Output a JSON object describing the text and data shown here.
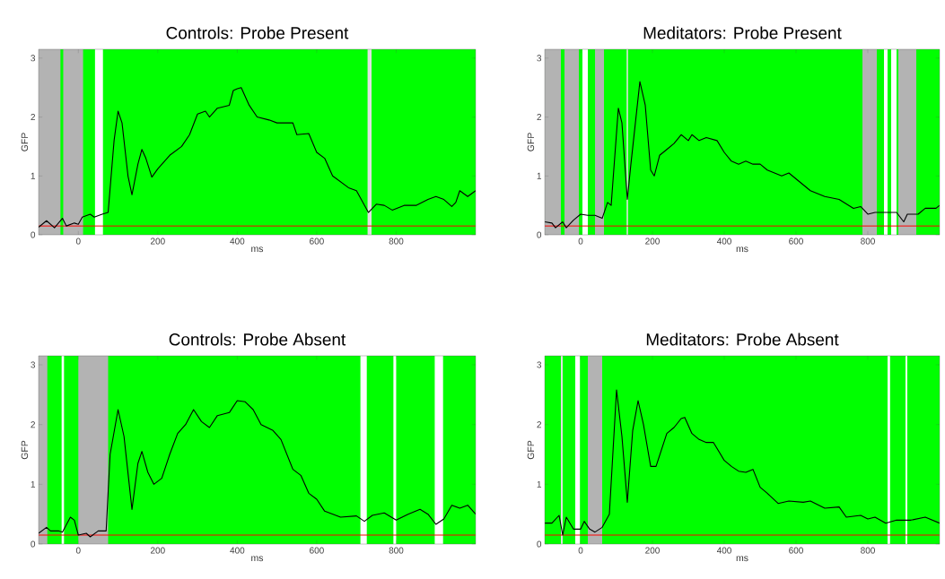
{
  "chart_data": [
    {
      "type": "line",
      "title": "Controls: Probe Present",
      "xlabel": "ms",
      "ylabel": "GFP",
      "xlim": [
        -100,
        1000
      ],
      "ylim": [
        0,
        3.15
      ],
      "xticks": [
        0,
        200,
        400,
        600,
        800
      ],
      "yticks": [
        0,
        1,
        2,
        3
      ],
      "x": [
        -100,
        -80,
        -60,
        -40,
        -30,
        -10,
        0,
        10,
        30,
        40,
        60,
        75,
        90,
        100,
        110,
        125,
        135,
        150,
        160,
        170,
        185,
        200,
        230,
        260,
        280,
        300,
        320,
        330,
        350,
        380,
        390,
        400,
        410,
        430,
        450,
        480,
        500,
        540,
        550,
        580,
        600,
        620,
        640,
        660,
        680,
        700,
        730,
        750,
        770,
        790,
        820,
        850,
        880,
        900,
        920,
        940,
        950,
        960,
        980,
        1000
      ],
      "series": [
        {
          "color": "#000000",
          "values": [
            0.13,
            0.24,
            0.12,
            0.28,
            0.15,
            0.2,
            0.18,
            0.3,
            0.35,
            0.3,
            0.35,
            0.38,
            1.6,
            2.1,
            1.9,
            1.0,
            0.68,
            1.2,
            1.45,
            1.3,
            0.98,
            1.12,
            1.35,
            1.5,
            1.7,
            2.05,
            2.1,
            2.0,
            2.15,
            2.2,
            2.45,
            2.48,
            2.5,
            2.2,
            2.0,
            1.95,
            1.9,
            1.9,
            1.7,
            1.72,
            1.4,
            1.3,
            1.0,
            0.9,
            0.8,
            0.75,
            0.38,
            0.52,
            0.5,
            0.42,
            0.5,
            0.5,
            0.6,
            0.65,
            0.6,
            0.48,
            0.55,
            0.75,
            0.65,
            0.75
          ]
        }
      ],
      "ref_lines": [
        {
          "axis": "y",
          "value": 0.15,
          "color": "#ff0000"
        }
      ],
      "bands": [
        {
          "axis": "x",
          "from": -100,
          "to": 1000,
          "color": "#00ff00"
        },
        {
          "axis": "x",
          "from": -100,
          "to": -45,
          "color": "#b3b3b3"
        },
        {
          "axis": "x",
          "from": -38,
          "to": 12,
          "color": "#b3b3b3"
        },
        {
          "axis": "x",
          "from": 42,
          "to": 62,
          "color": "#ffffff"
        },
        {
          "axis": "x",
          "from": 728,
          "to": 738,
          "color": "#e0e0e0"
        }
      ]
    },
    {
      "type": "line",
      "title": "Meditators: Probe Present",
      "xlabel": "ms",
      "ylabel": "GFP",
      "xlim": [
        -100,
        1000
      ],
      "ylim": [
        0,
        3.15
      ],
      "xticks": [
        0,
        200,
        400,
        600,
        800
      ],
      "yticks": [
        0,
        1,
        2,
        3
      ],
      "x": [
        -100,
        -80,
        -70,
        -50,
        -40,
        -20,
        0,
        20,
        40,
        60,
        75,
        85,
        105,
        115,
        130,
        140,
        165,
        180,
        195,
        205,
        220,
        240,
        260,
        280,
        300,
        310,
        330,
        350,
        380,
        400,
        420,
        440,
        460,
        480,
        500,
        520,
        560,
        580,
        600,
        640,
        680,
        720,
        760,
        780,
        800,
        820,
        850,
        880,
        900,
        910,
        940,
        960,
        990,
        1000
      ],
      "series": [
        {
          "color": "#000000",
          "values": [
            0.22,
            0.2,
            0.12,
            0.22,
            0.12,
            0.25,
            0.35,
            0.33,
            0.33,
            0.28,
            0.55,
            0.5,
            2.15,
            1.9,
            0.6,
            1.2,
            2.6,
            2.2,
            1.1,
            1.0,
            1.35,
            1.45,
            1.55,
            1.7,
            1.6,
            1.7,
            1.6,
            1.65,
            1.6,
            1.4,
            1.25,
            1.2,
            1.25,
            1.2,
            1.2,
            1.1,
            1.0,
            1.05,
            0.95,
            0.75,
            0.65,
            0.6,
            0.45,
            0.48,
            0.35,
            0.38,
            0.38,
            0.38,
            0.22,
            0.35,
            0.35,
            0.45,
            0.45,
            0.5
          ]
        }
      ],
      "ref_lines": [
        {
          "axis": "y",
          "value": 0.15,
          "color": "#ff0000"
        }
      ],
      "bands": [
        {
          "axis": "x",
          "from": -100,
          "to": 1000,
          "color": "#00ff00"
        },
        {
          "axis": "x",
          "from": -100,
          "to": -55,
          "color": "#b3b3b3"
        },
        {
          "axis": "x",
          "from": -45,
          "to": -5,
          "color": "#b3b3b3"
        },
        {
          "axis": "x",
          "from": 5,
          "to": 20,
          "color": "#ffffff"
        },
        {
          "axis": "x",
          "from": 40,
          "to": 65,
          "color": "#b3b3b3"
        },
        {
          "axis": "x",
          "from": 128,
          "to": 132,
          "color": "#e0e0e0"
        },
        {
          "axis": "x",
          "from": 785,
          "to": 825,
          "color": "#b3b3b3"
        },
        {
          "axis": "x",
          "from": 845,
          "to": 855,
          "color": "#ffffff"
        },
        {
          "axis": "x",
          "from": 865,
          "to": 880,
          "color": "#ffffff"
        },
        {
          "axis": "x",
          "from": 885,
          "to": 935,
          "color": "#b3b3b3"
        }
      ]
    },
    {
      "type": "line",
      "title": "Controls: Probe Absent",
      "xlabel": "ms",
      "ylabel": "GFP",
      "xlim": [
        -100,
        1000
      ],
      "ylim": [
        0,
        3.15
      ],
      "xticks": [
        0,
        200,
        400,
        600,
        800
      ],
      "yticks": [
        0,
        1,
        2,
        3
      ],
      "x": [
        -100,
        -80,
        -70,
        -50,
        -40,
        -20,
        -10,
        0,
        20,
        30,
        50,
        70,
        80,
        100,
        115,
        135,
        150,
        160,
        175,
        190,
        210,
        230,
        250,
        270,
        290,
        310,
        330,
        350,
        380,
        400,
        420,
        440,
        460,
        490,
        510,
        540,
        560,
        580,
        600,
        620,
        660,
        700,
        720,
        740,
        770,
        800,
        830,
        860,
        880,
        900,
        920,
        940,
        960,
        980,
        1000
      ],
      "series": [
        {
          "color": "#000000",
          "values": [
            0.18,
            0.28,
            0.22,
            0.22,
            0.2,
            0.45,
            0.4,
            0.15,
            0.18,
            0.12,
            0.22,
            0.22,
            1.5,
            2.25,
            1.8,
            0.58,
            1.35,
            1.55,
            1.2,
            1.0,
            1.1,
            1.5,
            1.85,
            2.0,
            2.25,
            2.05,
            1.95,
            2.15,
            2.2,
            2.4,
            2.38,
            2.25,
            2.0,
            1.9,
            1.75,
            1.25,
            1.15,
            0.85,
            0.75,
            0.55,
            0.45,
            0.47,
            0.38,
            0.48,
            0.52,
            0.4,
            0.5,
            0.58,
            0.5,
            0.33,
            0.42,
            0.65,
            0.6,
            0.65,
            0.5
          ]
        }
      ],
      "ref_lines": [
        {
          "axis": "y",
          "value": 0.15,
          "color": "#ff0000"
        }
      ],
      "bands": [
        {
          "axis": "x",
          "from": -100,
          "to": 1000,
          "color": "#00ff00"
        },
        {
          "axis": "x",
          "from": -100,
          "to": -78,
          "color": "#b3b3b3"
        },
        {
          "axis": "x",
          "from": -42,
          "to": -36,
          "color": "#ffffff"
        },
        {
          "axis": "x",
          "from": 0,
          "to": 75,
          "color": "#b3b3b3"
        },
        {
          "axis": "x",
          "from": 710,
          "to": 726,
          "color": "#ffffff"
        },
        {
          "axis": "x",
          "from": 793,
          "to": 800,
          "color": "#ffffff"
        },
        {
          "axis": "x",
          "from": 897,
          "to": 918,
          "color": "#ffffff"
        }
      ]
    },
    {
      "type": "line",
      "title": "Meditators: Probe Absent",
      "xlabel": "ms",
      "ylabel": "GFP",
      "xlim": [
        -100,
        1000
      ],
      "ylim": [
        0,
        3.15
      ],
      "xticks": [
        0,
        200,
        400,
        600,
        800
      ],
      "yticks": [
        0,
        1,
        2,
        3
      ],
      "x": [
        -100,
        -80,
        -60,
        -50,
        -40,
        -20,
        0,
        10,
        25,
        40,
        60,
        80,
        100,
        115,
        130,
        145,
        160,
        175,
        195,
        210,
        240,
        260,
        280,
        290,
        310,
        330,
        350,
        370,
        400,
        420,
        440,
        460,
        480,
        500,
        520,
        550,
        580,
        620,
        640,
        680,
        720,
        740,
        780,
        800,
        820,
        850,
        880,
        920,
        960,
        1000
      ],
      "series": [
        {
          "color": "#000000",
          "values": [
            0.35,
            0.35,
            0.48,
            0.15,
            0.45,
            0.25,
            0.25,
            0.38,
            0.25,
            0.2,
            0.28,
            0.5,
            2.58,
            1.8,
            0.7,
            1.9,
            2.4,
            2.0,
            1.3,
            1.3,
            1.85,
            1.95,
            2.1,
            2.12,
            1.85,
            1.75,
            1.7,
            1.7,
            1.4,
            1.3,
            1.22,
            1.2,
            1.25,
            0.95,
            0.85,
            0.68,
            0.72,
            0.7,
            0.72,
            0.6,
            0.62,
            0.45,
            0.48,
            0.42,
            0.45,
            0.35,
            0.4,
            0.4,
            0.45,
            0.35
          ]
        }
      ],
      "ref_lines": [
        {
          "axis": "y",
          "value": 0.15,
          "color": "#ff0000"
        }
      ],
      "bands": [
        {
          "axis": "x",
          "from": -100,
          "to": 1000,
          "color": "#00ff00"
        },
        {
          "axis": "x",
          "from": -55,
          "to": -50,
          "color": "#e0e0e0"
        },
        {
          "axis": "x",
          "from": -15,
          "to": -2,
          "color": "#ffffff"
        },
        {
          "axis": "x",
          "from": 20,
          "to": 60,
          "color": "#b3b3b3"
        },
        {
          "axis": "x",
          "from": 855,
          "to": 862,
          "color": "#ffffff"
        },
        {
          "axis": "x",
          "from": 905,
          "to": 910,
          "color": "#ffffff"
        }
      ]
    }
  ]
}
